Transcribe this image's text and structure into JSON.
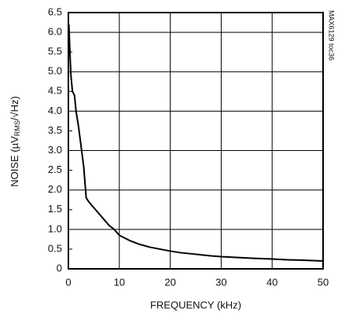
{
  "chart_data": {
    "type": "line",
    "xlabel": "FREQUENCY (kHz)",
    "ylabel": "NOISE (µV",
    "ylabel_sub": "RMS",
    "ylabel_end": "/√Hz)",
    "side_note": "MAX6129 toc36",
    "xlim": [
      0,
      50
    ],
    "xticks": [
      0,
      10,
      20,
      30,
      40,
      50
    ],
    "ylim": [
      0,
      6.5
    ],
    "yticks": [
      0,
      {
        "value": 0.5,
        "label": "0.5"
      },
      {
        "value": 1,
        "label": "1.0"
      },
      {
        "value": 1.5,
        "label": "1.5"
      },
      {
        "value": 2,
        "label": "2.0"
      },
      {
        "value": 2.5,
        "label": "2.5"
      },
      {
        "value": 3,
        "label": "3.0"
      },
      {
        "value": 3.5,
        "label": "3.5"
      },
      {
        "value": 4,
        "label": "4.0"
      },
      {
        "value": 4.5,
        "label": "4.5"
      },
      {
        "value": 5,
        "label": "5.0"
      },
      {
        "value": 5.5,
        "label": "5.5"
      },
      {
        "value": 6,
        "label": "6.0"
      },
      {
        "value": 6.5,
        "label": "6.5"
      }
    ],
    "grid": true,
    "series": [
      {
        "color": "#000000",
        "x": [
          0.1,
          0.3,
          0.5,
          0.8,
          1.2,
          1.5,
          2,
          2.5,
          3,
          3.5,
          4,
          5,
          6,
          7,
          8,
          9,
          10,
          12,
          14,
          16,
          18,
          20,
          22,
          25,
          28,
          30,
          33,
          36,
          40,
          43,
          46,
          50
        ],
        "values": [
          6.2,
          5.5,
          4.9,
          4.5,
          4.4,
          4.0,
          3.6,
          3.1,
          2.6,
          1.8,
          1.7,
          1.55,
          1.4,
          1.25,
          1.1,
          1.0,
          0.85,
          0.72,
          0.62,
          0.55,
          0.5,
          0.45,
          0.41,
          0.37,
          0.33,
          0.31,
          0.29,
          0.27,
          0.25,
          0.23,
          0.22,
          0.2
        ]
      }
    ]
  }
}
